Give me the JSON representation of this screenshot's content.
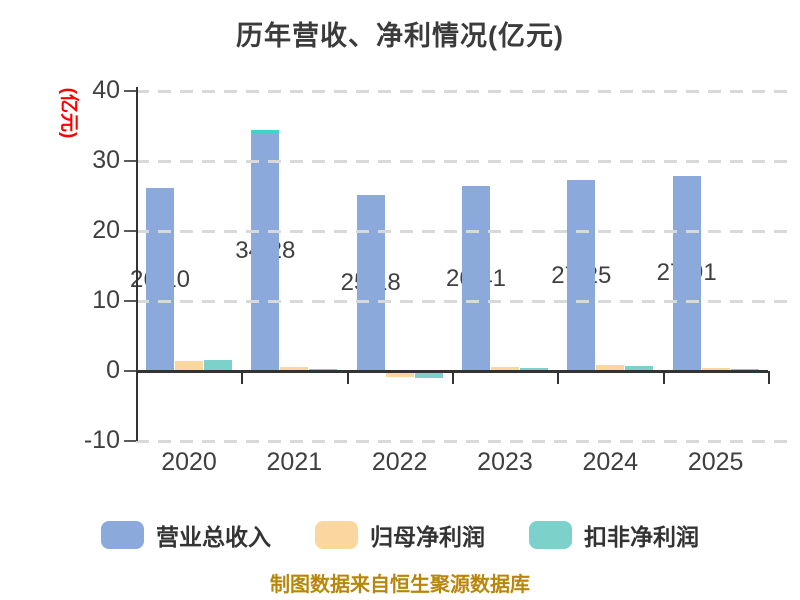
{
  "title": "历年营收、净利情况(亿元)",
  "y_axis": {
    "unit_label": "(亿元)",
    "unit_label_color": "#ff0000",
    "tick_labels": [
      "40",
      "30",
      "20",
      "10",
      "0",
      "-10"
    ],
    "tick_values": [
      40,
      30,
      20,
      10,
      0,
      -10
    ],
    "min": -10,
    "max": 40
  },
  "x_axis": {
    "categories": [
      "2020",
      "2021",
      "2022",
      "2023",
      "2024",
      "2025"
    ]
  },
  "legend": {
    "items": [
      {
        "label": "营业总收入",
        "color": "#8ca9db"
      },
      {
        "label": "归母净利润",
        "color": "#fbd7a0"
      },
      {
        "label": "扣非净利润",
        "color": "#7cd2cb"
      }
    ]
  },
  "footer": "制图数据来自恒生聚源数据库",
  "chart_data": {
    "type": "bar",
    "title": "历年营收、净利情况(亿元)",
    "categories": [
      "2020",
      "2021",
      "2022",
      "2023",
      "2024",
      "2025"
    ],
    "series": [
      {
        "name": "营业总收入",
        "color": "#8ca9db",
        "values": [
          26.1,
          34.28,
          25.18,
          26.41,
          27.25,
          27.91
        ],
        "data_labels": [
          "26.10",
          "34.28",
          "25.18",
          "26.41",
          "27.25",
          "27.91"
        ]
      },
      {
        "name": "归母净利润",
        "color": "#fbd7a0",
        "values": [
          1.5,
          0.6,
          -0.8,
          0.55,
          0.9,
          0.5
        ]
      },
      {
        "name": "扣非净利润",
        "color": "#7cd2cb",
        "values": [
          1.55,
          0.35,
          -1.0,
          0.45,
          0.65,
          0.35
        ]
      }
    ],
    "ylabel": "(亿元)",
    "ylim": [
      -10,
      40
    ],
    "grid": "horizontal-dashed",
    "gridline_color": "#d9d9d9",
    "legend_position": "bottom",
    "teal_cap_on_year": "2021",
    "teal_cap_color": "#3fd4c6"
  }
}
